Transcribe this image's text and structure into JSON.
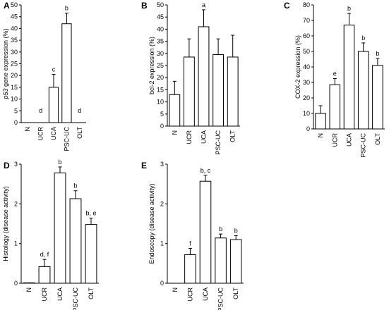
{
  "chart_data": [
    {
      "panel": "A",
      "type": "bar",
      "ylabel_italic": "p53",
      "ylabel": " gene expression (%)",
      "categories": [
        "N",
        "UCR",
        "UCA",
        "PSC-UC",
        "OLT"
      ],
      "values": [
        0,
        0,
        15,
        42,
        0
      ],
      "errors": [
        0,
        0,
        5.5,
        4.5,
        0
      ],
      "significance": [
        "",
        "d",
        "c",
        "b",
        "d"
      ],
      "ylim": [
        0,
        50
      ],
      "yticks": [
        0,
        5,
        10,
        15,
        20,
        25,
        30,
        35,
        40,
        45,
        50
      ]
    },
    {
      "panel": "B",
      "type": "bar",
      "ylabel": "bcl-2 expression (%)",
      "categories": [
        "N",
        "UCR",
        "UCA",
        "PSC-UC",
        "OLT"
      ],
      "values": [
        13,
        28.5,
        41,
        29.5,
        28.5
      ],
      "errors": [
        5.5,
        7.5,
        7,
        6.5,
        9
      ],
      "significance": [
        "",
        "",
        "a",
        "",
        ""
      ],
      "ylim": [
        0,
        50
      ],
      "yticks": [
        0,
        5,
        10,
        15,
        20,
        25,
        30,
        35,
        40,
        45,
        50
      ]
    },
    {
      "panel": "C",
      "type": "bar",
      "ylabel": "COX-2 expression (%)",
      "categories": [
        "N",
        "UCR",
        "UCA",
        "PSC-UC",
        "OLT"
      ],
      "values": [
        10,
        28.5,
        67,
        50,
        41
      ],
      "errors": [
        5,
        4,
        7.5,
        5.5,
        4.5
      ],
      "significance": [
        "",
        "e",
        "b",
        "b",
        "b"
      ],
      "ylim": [
        0,
        80
      ],
      "yticks": [
        0,
        10,
        20,
        30,
        40,
        50,
        60,
        70,
        80
      ]
    },
    {
      "panel": "D",
      "type": "bar",
      "ylabel": "Histology (disease activity)",
      "categories": [
        "N",
        "UCR",
        "UCA",
        "PSC-UC",
        "OLT"
      ],
      "values": [
        0.01,
        0.42,
        2.78,
        2.13,
        1.48
      ],
      "errors": [
        0,
        0.18,
        0.15,
        0.2,
        0.16
      ],
      "significance": [
        "",
        "d, f",
        "b",
        "b",
        "b, e"
      ],
      "ylim": [
        0,
        3
      ],
      "yticks": [
        0,
        1,
        2,
        3
      ]
    },
    {
      "panel": "E",
      "type": "bar",
      "ylabel": "Endoscopy (disease activity)",
      "categories": [
        "N",
        "UCR",
        "UCA",
        "PSC-UC",
        "OLT"
      ],
      "values": [
        0,
        0.72,
        2.57,
        1.14,
        1.1
      ],
      "errors": [
        0,
        0.16,
        0.15,
        0.1,
        0.1
      ],
      "significance": [
        "",
        "f",
        "b, c",
        "b",
        "b"
      ],
      "ylim": [
        0,
        3
      ],
      "yticks": [
        0,
        1,
        2,
        3
      ]
    }
  ]
}
